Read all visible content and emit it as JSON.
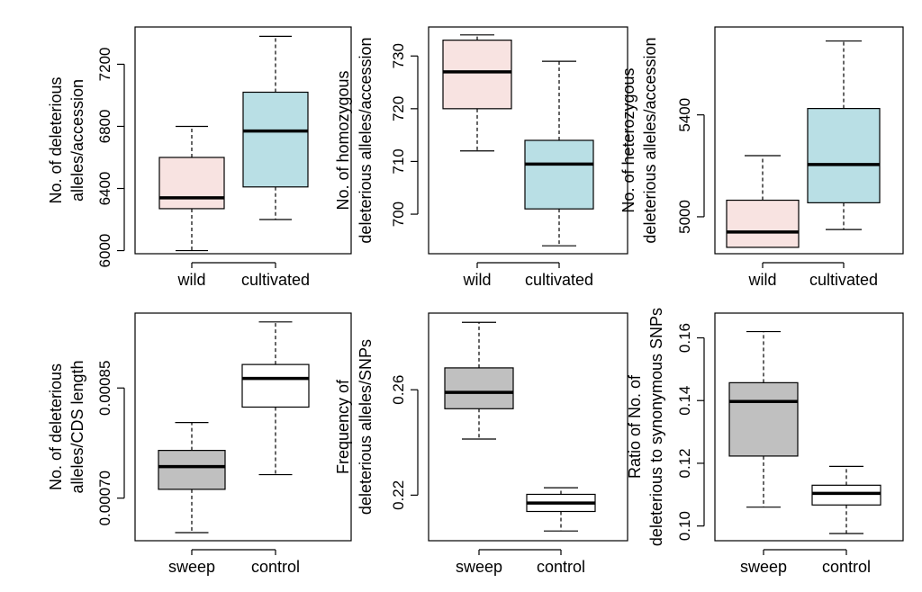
{
  "colors": {
    "wild": "#f8e3e1",
    "cultivated": "#b9dfe5",
    "sweep": "#c0c0c0",
    "control": "#ffffff",
    "stroke": "#000000"
  },
  "chart_data": [
    {
      "type": "boxplot",
      "ylabel": [
        "No. of deleterious",
        "alleles/accession"
      ],
      "categories": [
        "wild",
        "cultivated"
      ],
      "ylim": [
        5980,
        7440
      ],
      "yticks": [
        6000,
        6400,
        6800,
        7200
      ],
      "ytick_labels": [
        "6000",
        "6400",
        "6800",
        "7200"
      ],
      "boxes": [
        {
          "name": "wild",
          "color_key": "wild",
          "whisker_low": 6000,
          "q1": 6270,
          "median": 6340,
          "q3": 6600,
          "whisker_high": 6800
        },
        {
          "name": "cultivated",
          "color_key": "cultivated",
          "whisker_low": 6200,
          "q1": 6410,
          "median": 6770,
          "q3": 7020,
          "whisker_high": 7380
        }
      ]
    },
    {
      "type": "boxplot",
      "ylabel": [
        "No. of homozygous",
        "deleterious alleles/accession"
      ],
      "categories": [
        "wild",
        "cultivated"
      ],
      "ylim": [
        692.5,
        735.5
      ],
      "yticks": [
        700,
        710,
        720,
        730
      ],
      "ytick_labels": [
        "700",
        "710",
        "720",
        "730"
      ],
      "boxes": [
        {
          "name": "wild",
          "color_key": "wild",
          "whisker_low": 712,
          "q1": 720,
          "median": 727,
          "q3": 733,
          "whisker_high": 734
        },
        {
          "name": "cultivated",
          "color_key": "cultivated",
          "whisker_low": 694,
          "q1": 701,
          "median": 709.5,
          "q3": 714,
          "whisker_high": 729
        }
      ]
    },
    {
      "type": "boxplot",
      "ylabel": [
        "No. of heterozygous",
        "deleterious alleles/accession"
      ],
      "categories": [
        "wild",
        "cultivated"
      ],
      "ylim": [
        4855,
        5745
      ],
      "yticks": [
        5000,
        5400
      ],
      "ytick_labels": [
        "5000",
        "5400"
      ],
      "boxes": [
        {
          "name": "wild",
          "color_key": "wild",
          "whisker_low": 4880,
          "q1": 4880,
          "median": 4940,
          "q3": 5065,
          "whisker_high": 5240
        },
        {
          "name": "cultivated",
          "color_key": "cultivated",
          "whisker_low": 4950,
          "q1": 5055,
          "median": 5205,
          "q3": 5425,
          "whisker_high": 5690
        }
      ]
    },
    {
      "type": "boxplot",
      "ylabel": [
        "No. of deleterious",
        "alleles/CDS length"
      ],
      "categories": [
        "sweep",
        "control"
      ],
      "ylim": [
        0.000642,
        0.000952
      ],
      "yticks": [
        0.0007,
        0.00085
      ],
      "ytick_labels": [
        "0.00070",
        "0.00085"
      ],
      "boxes": [
        {
          "name": "sweep",
          "color_key": "sweep",
          "whisker_low": 0.000653,
          "q1": 0.000712,
          "median": 0.000743,
          "q3": 0.000765,
          "whisker_high": 0.000803
        },
        {
          "name": "control",
          "color_key": "control",
          "whisker_low": 0.000732,
          "q1": 0.000824,
          "median": 0.000863,
          "q3": 0.000882,
          "whisker_high": 0.00094
        }
      ]
    },
    {
      "type": "boxplot",
      "ylabel": [
        "Frequency of",
        "deleterious alleles/SNPs"
      ],
      "categories": [
        "sweep",
        "control"
      ],
      "ylim": [
        0.2027,
        0.2891
      ],
      "yticks": [
        0.22,
        0.26
      ],
      "ytick_labels": [
        "0.22",
        "0.26"
      ],
      "boxes": [
        {
          "name": "sweep",
          "color_key": "sweep",
          "whisker_low": 0.2413,
          "q1": 0.2528,
          "median": 0.259,
          "q3": 0.2683,
          "whisker_high": 0.2856
        },
        {
          "name": "control",
          "color_key": "control",
          "whisker_low": 0.2064,
          "q1": 0.2138,
          "median": 0.217,
          "q3": 0.2203,
          "whisker_high": 0.2228
        }
      ]
    },
    {
      "type": "boxplot",
      "ylabel": [
        "Ratio of No. of",
        "deleterious to synonymous SNPs"
      ],
      "categories": [
        "sweep",
        "control"
      ],
      "ylim": [
        0.0953,
        0.1679
      ],
      "yticks": [
        0.1,
        0.12,
        0.14,
        0.16
      ],
      "ytick_labels": [
        "0.10",
        "0.12",
        "0.14",
        "0.16"
      ],
      "boxes": [
        {
          "name": "sweep",
          "color_key": "sweep",
          "whisker_low": 0.106,
          "q1": 0.1223,
          "median": 0.1397,
          "q3": 0.1457,
          "whisker_high": 0.162
        },
        {
          "name": "control",
          "color_key": "control",
          "whisker_low": 0.0976,
          "q1": 0.1067,
          "median": 0.1104,
          "q3": 0.113,
          "whisker_high": 0.119
        }
      ]
    }
  ]
}
